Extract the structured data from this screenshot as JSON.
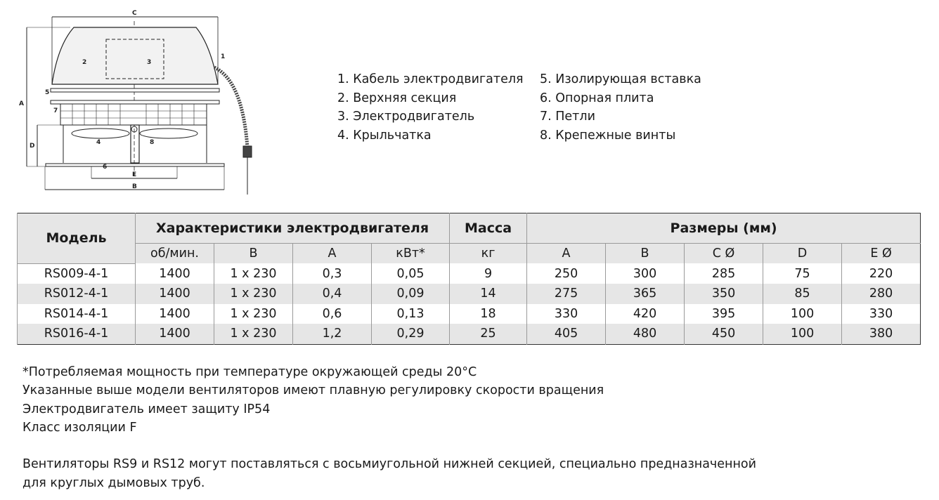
{
  "diagram": {
    "labels": [
      "1",
      "2",
      "3",
      "4",
      "5",
      "6",
      "7",
      "8"
    ],
    "dimensions": [
      "A",
      "B",
      "C",
      "D",
      "E"
    ]
  },
  "legend": {
    "left": [
      "1. Кабель электродвигателя",
      "2. Верхняя секция",
      "3. Электродвигатель",
      "4. Крыльчатка"
    ],
    "right": [
      "5. Изолирующая вставка",
      "6. Опорная плита",
      "7. Петли",
      "8. Крепежные винты"
    ]
  },
  "table": {
    "model_header": "Модель",
    "motor_header": "Характеристики электродвигателя",
    "mass_header": "Масса",
    "dims_header": "Размеры (мм)",
    "units": [
      "об/мин.",
      "В",
      "А",
      "кВт*",
      "кг",
      "A",
      "B",
      "C Ø",
      "D",
      "E Ø"
    ],
    "rows": [
      [
        "RS009-4-1",
        "1400",
        "1 x 230",
        "0,3",
        "0,05",
        "9",
        "250",
        "300",
        "285",
        "75",
        "220"
      ],
      [
        "RS012-4-1",
        "1400",
        "1 x 230",
        "0,4",
        "0,09",
        "14",
        "275",
        "365",
        "350",
        "85",
        "280"
      ],
      [
        "RS014-4-1",
        "1400",
        "1 x 230",
        "0,6",
        "0,13",
        "18",
        "330",
        "420",
        "395",
        "100",
        "330"
      ],
      [
        "RS016-4-1",
        "1400",
        "1 x 230",
        "1,2",
        "0,29",
        "25",
        "405",
        "480",
        "450",
        "100",
        "380"
      ]
    ]
  },
  "notes": [
    "*Потребляемая мощность при температуре окружающей среды 20°C",
    "Указанные выше модели вентиляторов имеют плавную регулировку скорости вращения",
    "Электродвигатель имеет защиту IP54",
    "Класс изоляции F",
    "",
    "Вентиляторы RS9 и RS12 могут поставляться с восьмиугольной нижней секцией, специально предназначенной",
    "для круглых дымовых труб."
  ]
}
